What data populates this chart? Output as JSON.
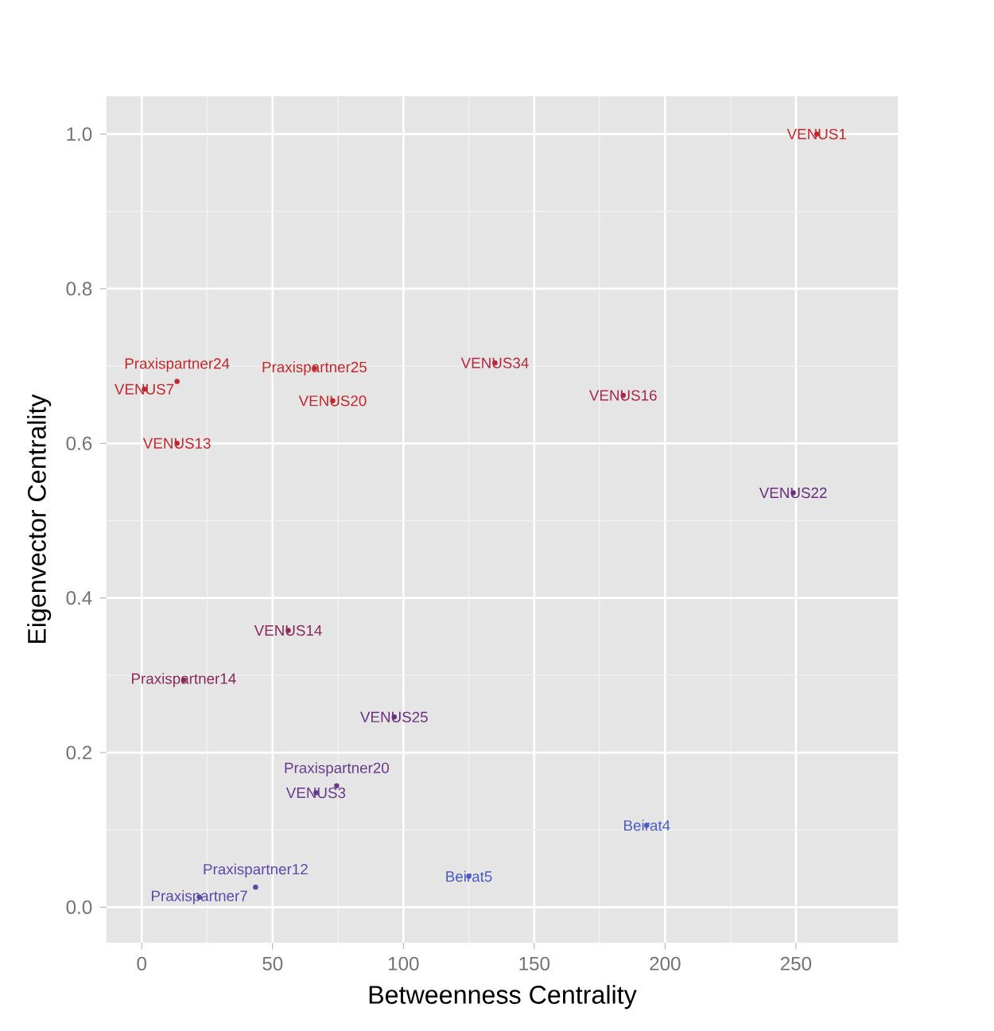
{
  "chart_data": {
    "type": "scatter",
    "xlabel": "Betweenness Centrality",
    "ylabel": "Eigenvector Centrality",
    "xlim": [
      -13.5,
      289
    ],
    "ylim": [
      -0.046,
      1.049
    ],
    "xticks": [
      0,
      50,
      100,
      150,
      200,
      250
    ],
    "yticks": [
      {
        "value": 0,
        "label": "0.0"
      },
      {
        "value": 0.2,
        "label": "0.2"
      },
      {
        "value": 0.4,
        "label": "0.4"
      },
      {
        "value": 0.6,
        "label": "0.6"
      },
      {
        "value": 0.8,
        "label": "0.8"
      },
      {
        "value": 1,
        "label": "1.0"
      }
    ],
    "grid": true,
    "marker": "circle",
    "series": [
      {
        "name": "VENUS1",
        "color": "#c0282e",
        "x": [
          258
        ],
        "values": [
          1.0
        ]
      },
      {
        "name": "Praxispartner25",
        "color": "#c0282e",
        "x": [
          66
        ],
        "values": [
          0.697
        ]
      },
      {
        "name": "Praxispartner24",
        "color": "#c0282e",
        "x": [
          13.5
        ],
        "values": [
          0.68
        ]
      },
      {
        "name": "VENUS7",
        "color": "#c0282e",
        "x": [
          1
        ],
        "values": [
          0.67
        ]
      },
      {
        "name": "VENUS13",
        "color": "#c0282e",
        "x": [
          13.5
        ],
        "values": [
          0.6
        ]
      },
      {
        "name": "VENUS20",
        "color": "#c0282e",
        "x": [
          73
        ],
        "values": [
          0.655
        ]
      },
      {
        "name": "VENUS34",
        "color": "#b52a40",
        "x": [
          135
        ],
        "values": [
          0.704
        ]
      },
      {
        "name": "VENUS16",
        "color": "#a52a50",
        "x": [
          184
        ],
        "values": [
          0.662
        ]
      },
      {
        "name": "VENUS22",
        "color": "#6a3080",
        "x": [
          249
        ],
        "values": [
          0.536
        ]
      },
      {
        "name": "VENUS14",
        "color": "#8a2a5a",
        "x": [
          56
        ],
        "values": [
          0.358
        ]
      },
      {
        "name": "Praxispartner14",
        "color": "#8a2a5a",
        "x": [
          16
        ],
        "values": [
          0.294
        ]
      },
      {
        "name": "VENUS25",
        "color": "#6a3080",
        "x": [
          96.5
        ],
        "values": [
          0.246
        ]
      },
      {
        "name": "Praxispartner20",
        "color": "#6a3a8a",
        "x": [
          74.5
        ],
        "values": [
          0.157
        ]
      },
      {
        "name": "VENUS3",
        "color": "#6a3a8a",
        "x": [
          66.6
        ],
        "values": [
          0.148
        ]
      },
      {
        "name": "Beirat4",
        "color": "#4a5cc0",
        "x": [
          193
        ],
        "values": [
          0.106
        ]
      },
      {
        "name": "Beirat5",
        "color": "#4a5cc0",
        "x": [
          125
        ],
        "values": [
          0.04
        ]
      },
      {
        "name": "Praxispartner12",
        "color": "#5a48a8",
        "x": [
          43.5
        ],
        "values": [
          0.026
        ]
      },
      {
        "name": "Praxispartner7",
        "color": "#5a48a8",
        "x": [
          22
        ],
        "values": [
          0.013
        ]
      }
    ]
  }
}
